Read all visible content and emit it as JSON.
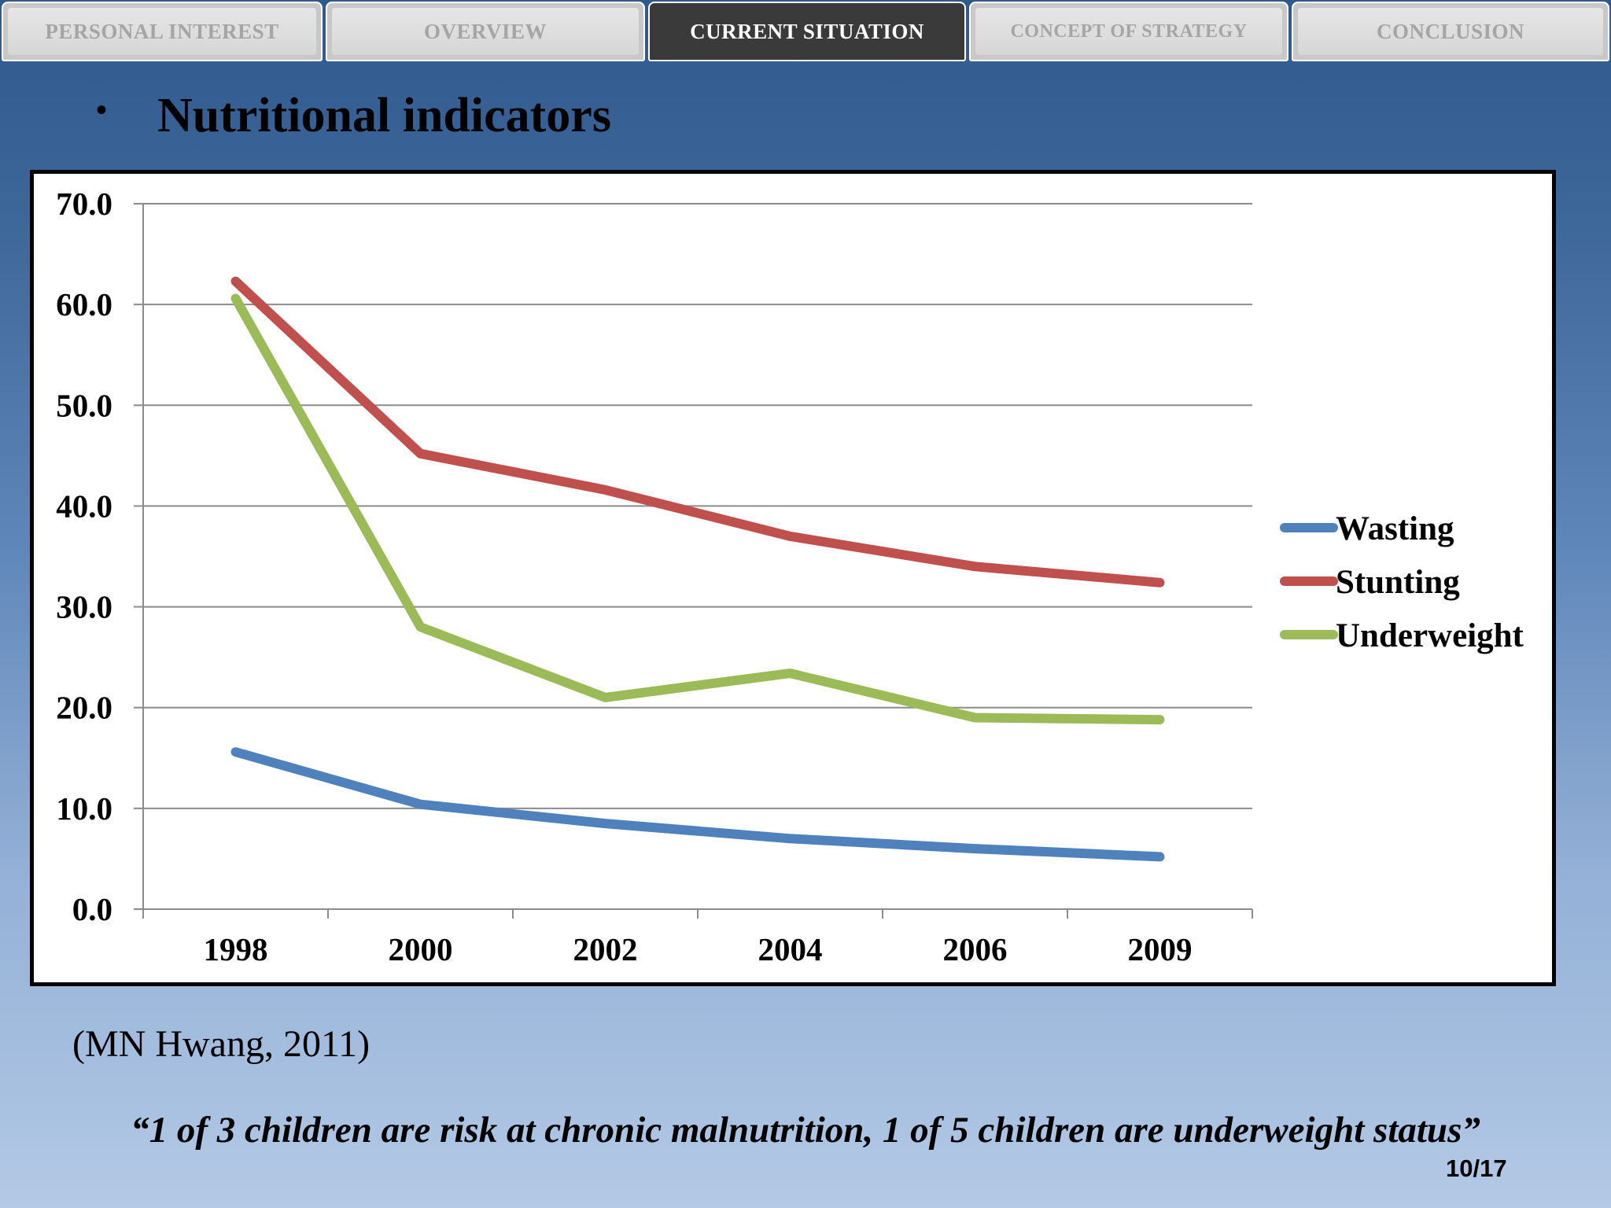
{
  "tabs": [
    {
      "label": "PERSONAL INTEREST",
      "active": false
    },
    {
      "label": "OVERVIEW",
      "active": false
    },
    {
      "label": "CURRENT SITUATION",
      "active": true
    },
    {
      "label": "CONCEPT OF STRATEGY",
      "active": false
    },
    {
      "label": "CONCLUSION",
      "active": false
    }
  ],
  "slide": {
    "title": "Nutritional indicators",
    "citation": "(MN Hwang, 2011)",
    "quote": "“1 of 3 children are risk at chronic malnutrition, 1 of 5 children are underweight status”",
    "page_number": "10/17"
  },
  "colors": {
    "active_tab": "#3a3a3a",
    "inactive_tab_text": "#a5a5a5",
    "gridline": "#8c8c8c"
  },
  "chart_data": {
    "type": "line",
    "title": "",
    "xlabel": "",
    "ylabel": "",
    "categories": [
      "1998",
      "2000",
      "2002",
      "2004",
      "2006",
      "2009"
    ],
    "ylim": [
      0,
      70
    ],
    "yticks": [
      "0.0",
      "10.0",
      "20.0",
      "30.0",
      "40.0",
      "50.0",
      "60.0",
      "70.0"
    ],
    "grid": true,
    "legend_position": "right",
    "series": [
      {
        "name": "Wasting",
        "color": "#4f81bd",
        "values": [
          15.6,
          10.4,
          8.5,
          7.0,
          6.0,
          5.2
        ]
      },
      {
        "name": "Stunting",
        "color": "#c0504d",
        "values": [
          62.3,
          45.2,
          41.6,
          37.0,
          34.0,
          32.4
        ]
      },
      {
        "name": "Underweight",
        "color": "#9bbb59",
        "values": [
          60.6,
          28.0,
          21.0,
          23.4,
          19.0,
          18.8
        ]
      }
    ]
  }
}
